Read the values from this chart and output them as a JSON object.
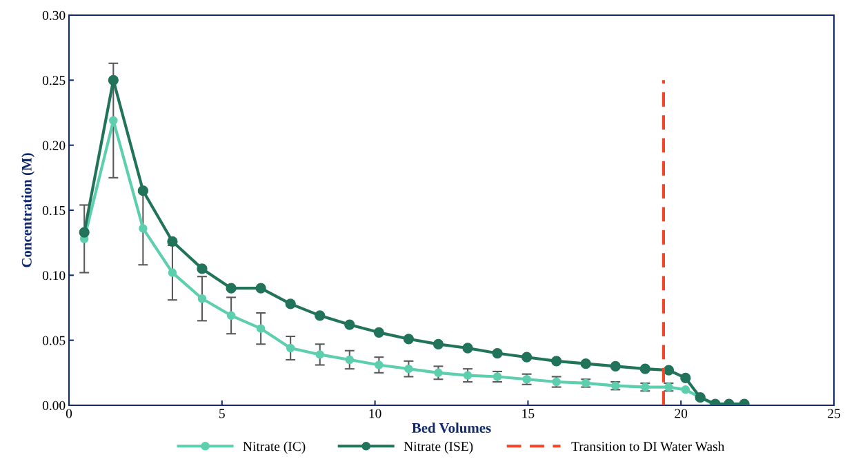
{
  "chart_data": {
    "type": "line",
    "xlabel": "Bed Volumes",
    "ylabel": "Concentration (M)",
    "xlim": [
      0,
      25
    ],
    "xticks": [
      0,
      5,
      10,
      15,
      20,
      25
    ],
    "ylim": [
      0,
      0.3
    ],
    "yticks": [
      {
        "value": 0,
        "label": "0.00"
      },
      {
        "value": 0.05,
        "label": "0.05"
      },
      {
        "value": 0.1,
        "label": "0.10"
      },
      {
        "value": 0.15,
        "label": "0.15"
      },
      {
        "value": 0.2,
        "label": "0.20"
      },
      {
        "value": 0.25,
        "label": "0.25"
      },
      {
        "value": 0.3,
        "label": "0.30"
      }
    ],
    "x": [
      0.5,
      1.45,
      2.42,
      3.38,
      4.35,
      5.3,
      6.27,
      7.24,
      8.2,
      9.17,
      10.13,
      11.1,
      12.07,
      13.03,
      14.0,
      14.96,
      15.93,
      16.89,
      17.86,
      18.83,
      19.6,
      20.15,
      20.63,
      21.12,
      21.57,
      22.07
    ],
    "series": [
      {
        "name": "Nitrate (IC)",
        "color": "#5dcfae",
        "values": [
          0.128,
          0.219,
          0.136,
          0.102,
          0.082,
          0.069,
          0.059,
          0.044,
          0.039,
          0.035,
          0.031,
          0.028,
          0.025,
          0.023,
          0.022,
          0.02,
          0.018,
          0.017,
          0.015,
          0.014,
          0.014,
          0.012,
          null,
          0.0,
          0.0,
          0.0
        ],
        "errors": [
          0.026,
          0.044,
          0.028,
          0.021,
          0.017,
          0.014,
          0.012,
          0.009,
          0.008,
          0.007,
          0.006,
          0.006,
          0.005,
          0.005,
          0.004,
          0.004,
          0.004,
          0.003,
          0.003,
          0.003,
          0.003,
          null,
          null,
          null,
          null,
          null
        ]
      },
      {
        "name": "Nitrate (ISE)",
        "color": "#21735a",
        "values": [
          0.133,
          0.25,
          0.165,
          0.126,
          0.105,
          0.09,
          0.09,
          0.078,
          0.069,
          0.062,
          0.056,
          0.051,
          0.047,
          0.044,
          0.04,
          0.037,
          0.034,
          0.032,
          0.03,
          0.028,
          0.027,
          0.021,
          0.006,
          0.001,
          0.001,
          0.001
        ]
      }
    ],
    "ref_lines": [
      {
        "axis": "x",
        "value": 19.43,
        "label": "Transition to DI Water Wash",
        "color": "#f0462a",
        "line_style": "dashed"
      }
    ],
    "marker": "circle",
    "line_style": "solid",
    "grid": false,
    "legend": "bottom"
  }
}
